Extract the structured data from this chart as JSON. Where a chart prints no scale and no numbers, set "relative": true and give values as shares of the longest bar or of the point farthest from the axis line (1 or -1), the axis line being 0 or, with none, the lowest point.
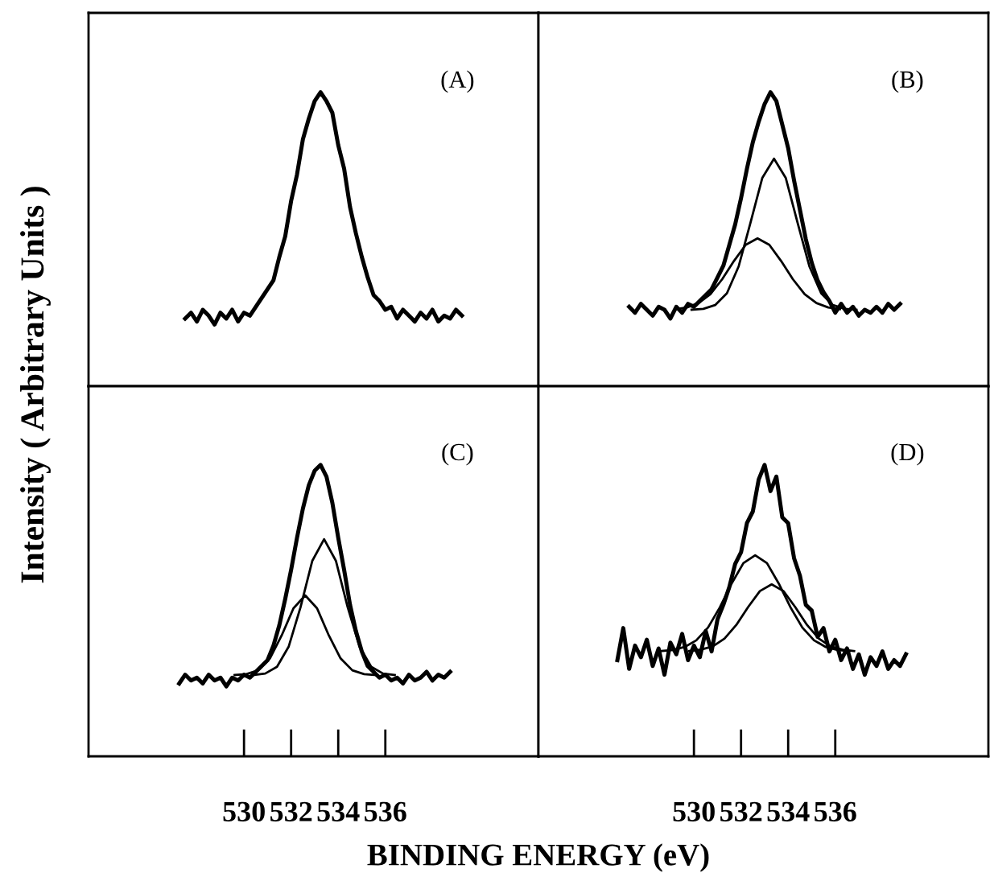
{
  "chart_data": [
    {
      "type": "line",
      "relative": true,
      "ylabel": "Intensity ( Arbitrary Units )",
      "xlabel": "BINDING ENERGY (eV)",
      "xlim": [
        523.4,
        542.5
      ],
      "tick_labels": false,
      "annotations": [
        "(A)"
      ],
      "series": [
        {
          "color": "#000000",
          "x": [
            527.5,
            527.75,
            528,
            528.25,
            528.5,
            528.75,
            529,
            529.25,
            529.5,
            529.75,
            530,
            530.25,
            530.5,
            530.75,
            531,
            531.25,
            531.5,
            531.75,
            532,
            532.25,
            532.5,
            532.75,
            533,
            533.25,
            533.5,
            533.75,
            534,
            534.25,
            534.5,
            534.75,
            535,
            535.25,
            535.5,
            535.75,
            536,
            536.25,
            536.5,
            536.75,
            537,
            537.25,
            537.5,
            537.75,
            538,
            538.25,
            538.5,
            538.75,
            539,
            539.25
          ],
          "values": [
            0.23,
            0.25,
            0.22,
            0.26,
            0.24,
            0.21,
            0.25,
            0.23,
            0.26,
            0.22,
            0.25,
            0.24,
            0.27,
            0.3,
            0.33,
            0.36,
            0.44,
            0.51,
            0.63,
            0.72,
            0.84,
            0.91,
            0.97,
            1.0,
            0.97,
            0.93,
            0.82,
            0.74,
            0.61,
            0.52,
            0.44,
            0.37,
            0.31,
            0.29,
            0.26,
            0.27,
            0.23,
            0.26,
            0.24,
            0.22,
            0.25,
            0.23,
            0.26,
            0.22,
            0.24,
            0.23,
            0.26,
            0.24
          ]
        }
      ]
    },
    {
      "type": "line",
      "relative": true,
      "xlim": [
        523.4,
        542.5
      ],
      "tick_labels": false,
      "annotations": [
        "(B)"
      ],
      "series": [
        {
          "color": "#000000",
          "x": [
            527.25,
            527.5,
            527.75,
            528,
            528.25,
            528.5,
            528.75,
            529,
            529.25,
            529.5,
            529.75,
            530,
            530.25,
            530.5,
            530.75,
            531,
            531.25,
            531.5,
            531.75,
            532,
            532.25,
            532.5,
            532.75,
            533,
            533.25,
            533.5,
            533.75,
            534,
            534.25,
            534.5,
            534.75,
            535,
            535.25,
            535.5,
            535.75,
            536,
            536.25,
            536.5,
            536.75,
            537,
            537.25,
            537.5,
            537.75,
            538,
            538.25,
            538.5,
            538.75
          ],
          "values": [
            0.27,
            0.25,
            0.28,
            0.26,
            0.24,
            0.27,
            0.26,
            0.23,
            0.27,
            0.25,
            0.28,
            0.27,
            0.29,
            0.31,
            0.33,
            0.37,
            0.41,
            0.48,
            0.55,
            0.64,
            0.74,
            0.83,
            0.9,
            0.96,
            1.0,
            0.97,
            0.89,
            0.81,
            0.7,
            0.6,
            0.5,
            0.42,
            0.36,
            0.32,
            0.29,
            0.25,
            0.28,
            0.25,
            0.27,
            0.24,
            0.26,
            0.25,
            0.27,
            0.25,
            0.28,
            0.26,
            0.28
          ]
        },
        {
          "color": "#000000",
          "x": [
            529.9,
            530.4,
            530.9,
            531.4,
            531.9,
            532.4,
            532.9,
            533.4,
            533.9,
            534.4,
            534.9,
            535.4,
            535.9,
            536.4,
            536.9
          ],
          "values": [
            0.26,
            0.263,
            0.276,
            0.316,
            0.408,
            0.556,
            0.708,
            0.774,
            0.708,
            0.556,
            0.408,
            0.316,
            0.276,
            0.263,
            0.26
          ]
        },
        {
          "color": "#000000",
          "x": [
            529.2,
            529.7,
            530.2,
            530.7,
            531.2,
            531.7,
            532.2,
            532.7,
            533.2,
            533.7,
            534.2,
            534.7,
            535.2,
            535.7,
            536.2
          ],
          "values": [
            0.262,
            0.268,
            0.283,
            0.313,
            0.364,
            0.426,
            0.481,
            0.503,
            0.481,
            0.426,
            0.364,
            0.313,
            0.283,
            0.268,
            0.262
          ]
        }
      ]
    },
    {
      "type": "line",
      "relative": true,
      "xlim": [
        523.4,
        542.5
      ],
      "xticks": [
        530,
        532,
        534,
        536
      ],
      "tick_labels": "x",
      "annotations": [
        "(C)"
      ],
      "series": [
        {
          "color": "#000000",
          "x": [
            527.25,
            527.5,
            527.75,
            528,
            528.25,
            528.5,
            528.75,
            529,
            529.25,
            529.5,
            529.75,
            530,
            530.25,
            530.5,
            530.75,
            531,
            531.25,
            531.5,
            531.75,
            532,
            532.25,
            532.5,
            532.75,
            533,
            533.25,
            533.5,
            533.75,
            534,
            534.25,
            534.5,
            534.75,
            535,
            535.25,
            535.5,
            535.75,
            536,
            536.25,
            536.5,
            536.75,
            537,
            537.25,
            537.5,
            537.75,
            538,
            538.25,
            538.5,
            538.75
          ],
          "values": [
            0.25,
            0.28,
            0.26,
            0.27,
            0.25,
            0.28,
            0.26,
            0.27,
            0.24,
            0.27,
            0.26,
            0.28,
            0.27,
            0.29,
            0.31,
            0.33,
            0.38,
            0.45,
            0.54,
            0.64,
            0.75,
            0.85,
            0.93,
            0.98,
            1.0,
            0.96,
            0.87,
            0.75,
            0.64,
            0.52,
            0.43,
            0.36,
            0.31,
            0.29,
            0.27,
            0.28,
            0.26,
            0.27,
            0.25,
            0.28,
            0.26,
            0.27,
            0.29,
            0.26,
            0.28,
            0.27,
            0.29
          ]
        },
        {
          "color": "#000000",
          "x": [
            530.4,
            530.9,
            531.4,
            531.9,
            532.4,
            532.9,
            533.4,
            533.9,
            534.4,
            534.9,
            535.4,
            535.9,
            536.4
          ],
          "values": [
            0.279,
            0.284,
            0.307,
            0.377,
            0.512,
            0.671,
            0.745,
            0.671,
            0.512,
            0.377,
            0.307,
            0.284,
            0.279
          ]
        },
        {
          "color": "#000000",
          "x": [
            529.6,
            530.1,
            530.6,
            531.1,
            531.6,
            532.1,
            532.6,
            533.1,
            533.6,
            534.1,
            534.6,
            535.1,
            535.6
          ],
          "values": [
            0.279,
            0.282,
            0.295,
            0.336,
            0.415,
            0.508,
            0.552,
            0.508,
            0.415,
            0.336,
            0.295,
            0.282,
            0.279
          ]
        }
      ]
    },
    {
      "type": "line",
      "relative": true,
      "xlim": [
        523.4,
        542.5
      ],
      "xticks": [
        530,
        532,
        534,
        536
      ],
      "tick_labels": "x",
      "annotations": [
        "(D)"
      ],
      "series": [
        {
          "color": "#000000",
          "x": [
            526.75,
            527,
            527.25,
            527.5,
            527.75,
            528,
            528.25,
            528.5,
            528.75,
            529,
            529.25,
            529.5,
            529.75,
            530,
            530.25,
            530.5,
            530.75,
            531,
            531.25,
            531.5,
            531.75,
            532,
            532.25,
            532.5,
            532.75,
            533,
            533.25,
            533.5,
            533.75,
            534,
            534.25,
            534.5,
            534.75,
            535,
            535.25,
            535.5,
            535.75,
            536,
            536.25,
            536.5,
            536.75,
            537,
            537.25,
            537.5,
            537.75,
            538,
            538.25,
            538.5,
            538.75,
            539
          ],
          "values": [
            0.33,
            0.44,
            0.3,
            0.38,
            0.34,
            0.4,
            0.31,
            0.37,
            0.28,
            0.39,
            0.35,
            0.42,
            0.33,
            0.38,
            0.34,
            0.43,
            0.36,
            0.47,
            0.52,
            0.58,
            0.66,
            0.7,
            0.8,
            0.84,
            0.95,
            1.0,
            0.91,
            0.96,
            0.82,
            0.8,
            0.68,
            0.62,
            0.52,
            0.5,
            0.41,
            0.44,
            0.36,
            0.4,
            0.33,
            0.37,
            0.3,
            0.35,
            0.28,
            0.34,
            0.31,
            0.36,
            0.3,
            0.33,
            0.31,
            0.35
          ]
        },
        {
          "color": "#000000",
          "x": [
            528.6,
            529.1,
            529.6,
            530.1,
            530.6,
            531.1,
            531.6,
            532.1,
            532.6,
            533.1,
            533.6,
            534.1,
            534.6,
            535.1,
            535.6,
            536.1,
            536.6
          ],
          "values": [
            0.361,
            0.365,
            0.375,
            0.398,
            0.442,
            0.511,
            0.593,
            0.663,
            0.69,
            0.663,
            0.593,
            0.511,
            0.442,
            0.398,
            0.375,
            0.365,
            0.361
          ]
        },
        {
          "color": "#000000",
          "x": [
            529.8,
            530.3,
            530.8,
            531.3,
            531.8,
            532.3,
            532.8,
            533.3,
            533.8,
            534.3,
            534.8,
            535.3,
            535.8,
            536.3,
            536.8
          ],
          "values": [
            0.361,
            0.366,
            0.377,
            0.404,
            0.451,
            0.512,
            0.567,
            0.59,
            0.567,
            0.512,
            0.451,
            0.404,
            0.377,
            0.366,
            0.361
          ]
        }
      ]
    }
  ]
}
